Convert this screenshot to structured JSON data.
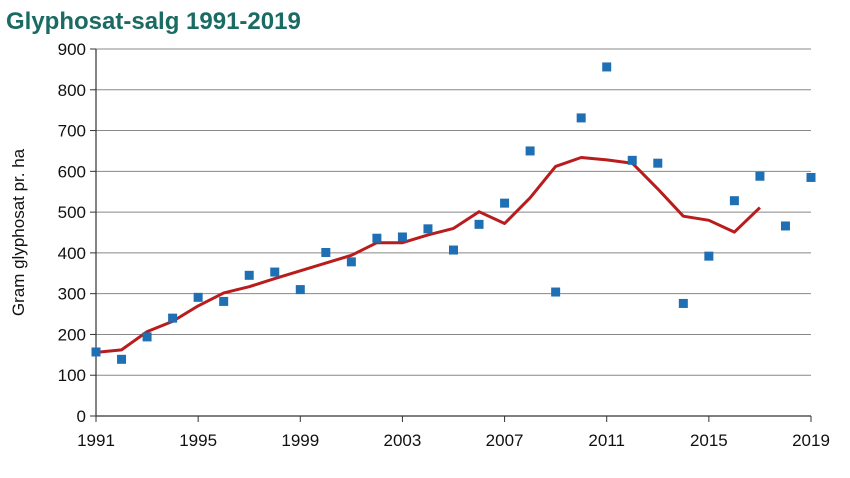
{
  "chart_data": {
    "type": "scatter",
    "title": "Glyphosat-salg 1991-2019",
    "xlabel": "",
    "ylabel": "Gram glyphosat pr. ha",
    "xlim": [
      1991,
      2019
    ],
    "ylim": [
      0,
      900
    ],
    "x_ticks": [
      1991,
      1995,
      1999,
      2003,
      2007,
      2011,
      2015,
      2019
    ],
    "y_ticks": [
      0,
      100,
      200,
      300,
      400,
      500,
      600,
      700,
      800,
      900
    ],
    "grid": "horizontal",
    "colors": {
      "points": "#1f6fb5",
      "trend": "#b81c1c",
      "title": "#1a6b63",
      "grid": "#888888"
    },
    "series": [
      {
        "type": "scatter",
        "x": [
          1991,
          1992,
          1993,
          1994,
          1995,
          1996,
          1997,
          1998,
          1999,
          2000,
          2001,
          2002,
          2003,
          2004,
          2005,
          2006,
          2007,
          2008,
          2009,
          2010,
          2011,
          2012,
          2013,
          2014,
          2015,
          2016,
          2017,
          2018,
          2019
        ],
        "y": [
          157,
          139,
          194,
          240,
          291,
          281,
          345,
          353,
          310,
          401,
          378,
          436,
          439,
          459,
          407,
          470,
          522,
          650,
          304,
          731,
          856,
          627,
          620,
          276,
          392,
          528,
          588,
          466,
          585
        ]
      },
      {
        "type": "line",
        "x": [
          1991,
          1992,
          1993,
          1994,
          1995,
          1996,
          1997,
          1998,
          1999,
          2000,
          2001,
          2002,
          2003,
          2004,
          2005,
          2006,
          2007,
          2008,
          2009,
          2010,
          2011,
          2012,
          2013,
          2014,
          2015,
          2016,
          2017
        ],
        "y": [
          156,
          162,
          207,
          232,
          270,
          302,
          317,
          337,
          356,
          375,
          394,
          425,
          425,
          444,
          460,
          501,
          472,
          535,
          612,
          634,
          628,
          620,
          557,
          490,
          480,
          451,
          511
        ]
      }
    ]
  }
}
